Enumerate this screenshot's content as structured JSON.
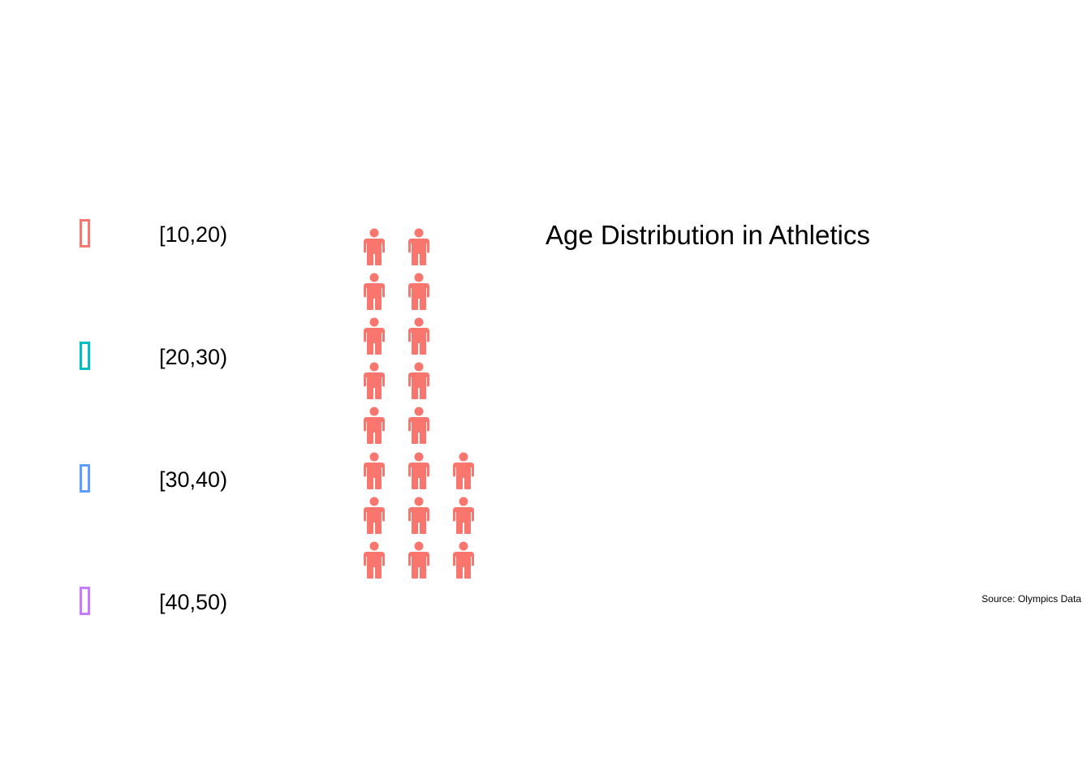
{
  "chart_data": {
    "type": "pictogram",
    "title": "Age Distribution in Athletics",
    "caption": "Source: Olympics Data",
    "icon": "person-icon",
    "legend": {
      "position": "left",
      "entries": [
        {
          "label": "[10,20)",
          "color": "#F8766D"
        },
        {
          "label": "[20,30)",
          "color": "#00BFC4"
        },
        {
          "label": "[30,40)",
          "color": "#619CFF"
        },
        {
          "label": "[40,50)",
          "color": "#C77CFF"
        }
      ]
    },
    "columns": [
      {
        "count": 8,
        "color": "#F8766D"
      },
      {
        "count": 8,
        "color": "#F8766D"
      },
      {
        "count": 3,
        "color": "#F8766D"
      }
    ]
  }
}
